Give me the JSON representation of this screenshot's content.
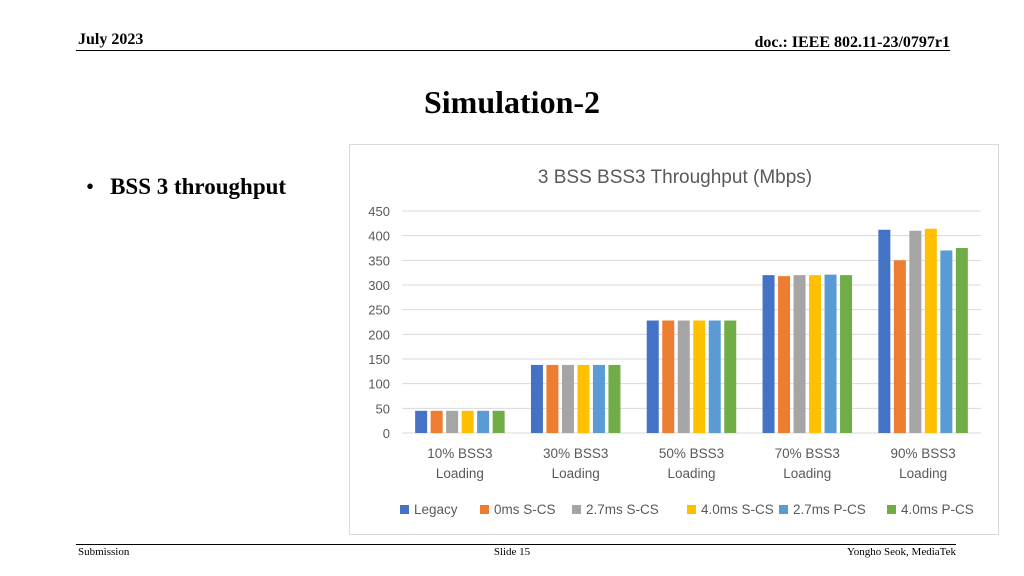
{
  "header": {
    "date": "July 2023",
    "doc_id": "doc.: IEEE 802.11-23/0797r1"
  },
  "slide": {
    "title": "Simulation-2",
    "bullet_marker": "•",
    "bullet_text": "BSS 3 throughput"
  },
  "footer": {
    "left": "Submission",
    "center": "Slide 15",
    "right": "Yongho Seok, MediaTek"
  },
  "chart_data": {
    "type": "bar",
    "title": "3 BSS BSS3 Throughput (Mbps)",
    "xlabel": "",
    "ylabel": "",
    "ylim": [
      0,
      450
    ],
    "yticks": [
      0,
      50,
      100,
      150,
      200,
      250,
      300,
      350,
      400,
      450
    ],
    "grid": true,
    "legend_position": "bottom",
    "categories": [
      [
        "10% BSS3",
        "Loading"
      ],
      [
        "30% BSS3",
        "Loading"
      ],
      [
        "50% BSS3",
        "Loading"
      ],
      [
        "70% BSS3",
        "Loading"
      ],
      [
        "90% BSS3",
        "Loading"
      ]
    ],
    "series": [
      {
        "name": "Legacy",
        "color": "#4472c4",
        "values": [
          45,
          138,
          228,
          320,
          412
        ]
      },
      {
        "name": "0ms S-CS",
        "color": "#ed7d31",
        "values": [
          45,
          138,
          228,
          318,
          350
        ]
      },
      {
        "name": "2.7ms S-CS",
        "color": "#a5a5a5",
        "values": [
          45,
          138,
          228,
          320,
          410
        ]
      },
      {
        "name": "4.0ms S-CS",
        "color": "#ffc000",
        "values": [
          45,
          138,
          228,
          320,
          414
        ]
      },
      {
        "name": "2.7ms P-CS",
        "color": "#5b9bd5",
        "values": [
          45,
          138,
          228,
          321,
          370
        ]
      },
      {
        "name": "4.0ms P-CS",
        "color": "#70ad47",
        "values": [
          45,
          138,
          228,
          320,
          375
        ]
      }
    ]
  }
}
